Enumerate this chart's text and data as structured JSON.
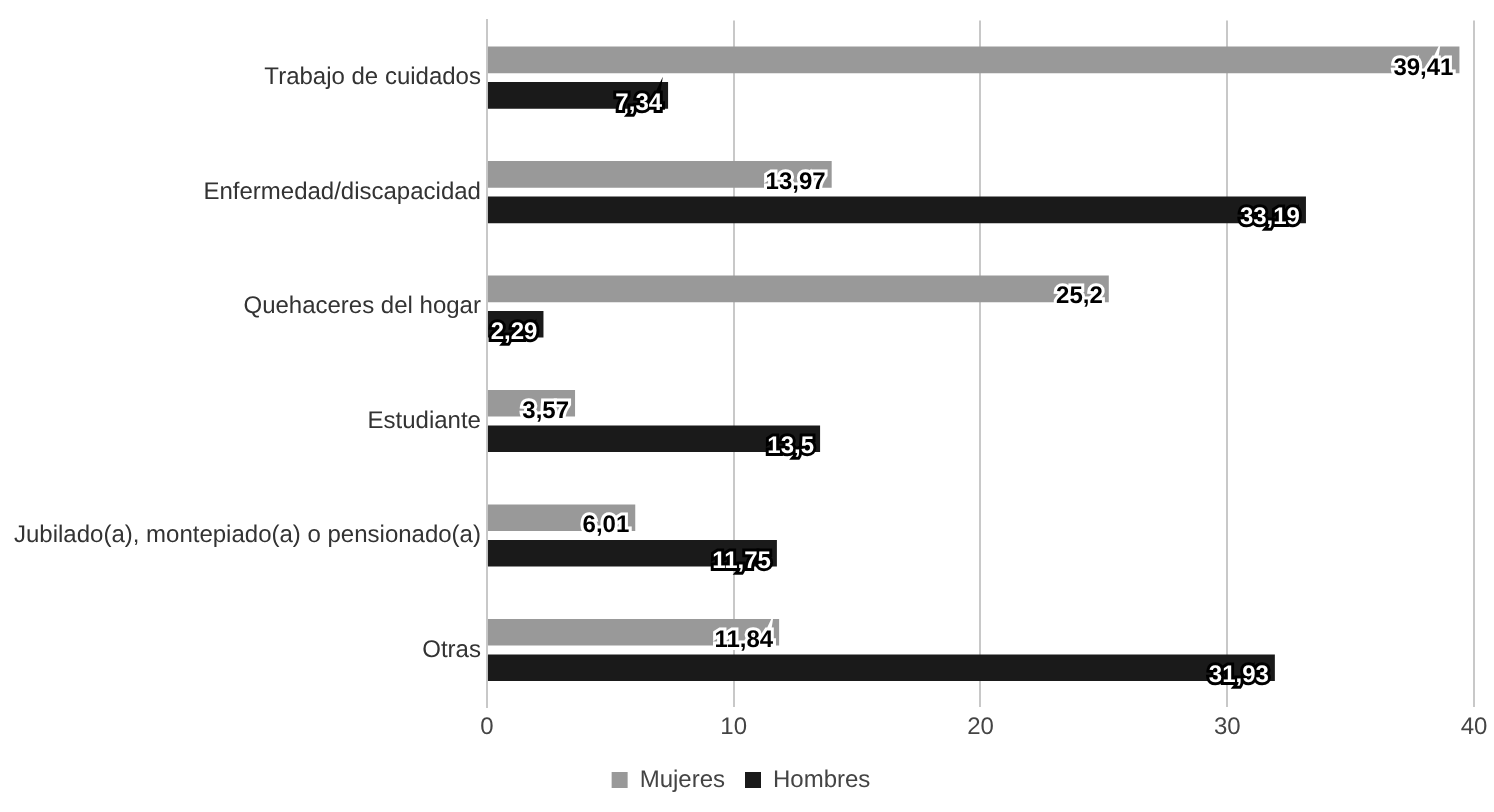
{
  "chart_data": {
    "type": "bar",
    "orientation": "horizontal",
    "categories": [
      "Trabajo de cuidados",
      "Enfermedad/discapacidad",
      "Quehaceres del hogar",
      "Estudiante",
      "Jubilado(a), montepiado(a) o pensionado(a)",
      "Otras"
    ],
    "series": [
      {
        "name": "Mujeres",
        "color": "#999999",
        "values": [
          39.41,
          13.97,
          25.2,
          3.57,
          6.01,
          11.84
        ],
        "value_labels": [
          "39,41",
          "13,97",
          "25,2",
          "3,57",
          "6,01",
          "11,84"
        ]
      },
      {
        "name": "Hombres",
        "color": "#1a1a1a",
        "values": [
          7.34,
          33.19,
          2.29,
          13.5,
          11.75,
          31.93
        ],
        "value_labels": [
          "7,34",
          "33,19",
          "2,29",
          "13,5",
          "11,75",
          "31,93"
        ]
      }
    ],
    "xlim": [
      0,
      40
    ],
    "xticks": [
      0,
      10,
      20,
      30,
      40
    ],
    "grid": "x",
    "legend": "bottom"
  }
}
